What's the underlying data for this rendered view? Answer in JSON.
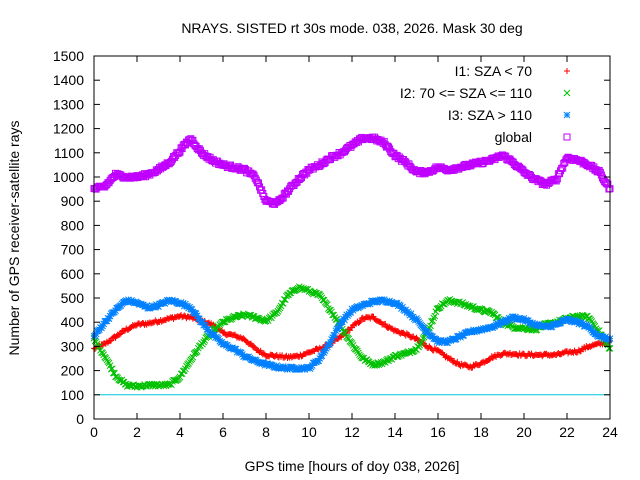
{
  "chart_data": {
    "type": "scatter",
    "title": "NRAYS. SISTED rt 30s mode. 038, 2026. Mask 30 deg",
    "xlabel": "GPS time [hours of doy 038, 2026]",
    "ylabel": "Number of GPS receiver-satellite rays",
    "xlim": [
      0,
      24
    ],
    "ylim": [
      0,
      1500
    ],
    "xticks": [
      0,
      2,
      4,
      6,
      8,
      10,
      12,
      14,
      16,
      18,
      20,
      22,
      24
    ],
    "yticks": [
      0,
      100,
      200,
      300,
      400,
      500,
      600,
      700,
      800,
      900,
      1000,
      1100,
      1200,
      1300,
      1400,
      1500
    ],
    "legend_position": "top-right",
    "threshold_line": {
      "y": 100,
      "color": "#00c8e0"
    },
    "series": [
      {
        "name": "I1: SZA < 70",
        "color": "#ff0000",
        "marker": "plus",
        "x": [
          0,
          0.5,
          1,
          1.5,
          2,
          2.5,
          3,
          3.5,
          4,
          4.5,
          5,
          5.5,
          6,
          6.5,
          7,
          7.5,
          8,
          8.5,
          9,
          9.5,
          10,
          10.5,
          11,
          11.5,
          12,
          12.5,
          13,
          13.5,
          14,
          14.5,
          15,
          15.5,
          16,
          16.5,
          17,
          17.5,
          18,
          18.5,
          19,
          19.5,
          20,
          20.5,
          21,
          21.5,
          22,
          22.5,
          23,
          23.5,
          24
        ],
        "values": [
          290,
          310,
          340,
          370,
          390,
          395,
          405,
          415,
          425,
          420,
          405,
          390,
          355,
          345,
          330,
          290,
          265,
          260,
          255,
          260,
          275,
          290,
          310,
          340,
          380,
          415,
          420,
          390,
          365,
          350,
          330,
          300,
          280,
          250,
          225,
          215,
          230,
          255,
          270,
          270,
          265,
          265,
          265,
          265,
          275,
          280,
          300,
          310,
          320
        ]
      },
      {
        "name": "I2: 70 <= SZA <= 110",
        "color": "#00c000",
        "marker": "cross",
        "x": [
          0,
          0.5,
          1,
          1.5,
          2,
          2.5,
          3,
          3.5,
          4,
          4.5,
          5,
          5.5,
          6,
          6.5,
          7,
          7.5,
          8,
          8.5,
          9,
          9.5,
          10,
          10.5,
          11,
          11.5,
          12,
          12.5,
          13,
          13.5,
          14,
          14.5,
          15,
          15.5,
          16,
          16.5,
          17,
          17.5,
          18,
          18.5,
          19,
          19.5,
          20,
          20.5,
          21,
          21.5,
          22,
          22.5,
          23,
          23.5,
          24
        ],
        "values": [
          330,
          260,
          180,
          140,
          135,
          140,
          140,
          140,
          175,
          245,
          310,
          360,
          400,
          420,
          430,
          420,
          405,
          440,
          510,
          545,
          530,
          510,
          450,
          380,
          310,
          250,
          225,
          235,
          260,
          270,
          290,
          360,
          460,
          490,
          480,
          465,
          450,
          440,
          400,
          380,
          375,
          370,
          390,
          400,
          415,
          425,
          420,
          360,
          290
        ]
      },
      {
        "name": "I3: SZA > 110",
        "color": "#0080ff",
        "marker": "star",
        "x": [
          0,
          0.5,
          1,
          1.5,
          2,
          2.5,
          3,
          3.5,
          4,
          4.5,
          5,
          5.5,
          6,
          6.5,
          7,
          7.5,
          8,
          8.5,
          9,
          9.5,
          10,
          10.5,
          11,
          11.5,
          12,
          12.5,
          13,
          13.5,
          14,
          14.5,
          15,
          15.5,
          16,
          16.5,
          17,
          17.5,
          18,
          18.5,
          19,
          19.5,
          20,
          20.5,
          21,
          21.5,
          22,
          22.5,
          23,
          23.5,
          24
        ],
        "values": [
          340,
          400,
          450,
          490,
          480,
          460,
          470,
          490,
          480,
          460,
          400,
          350,
          310,
          290,
          260,
          240,
          225,
          215,
          210,
          210,
          210,
          250,
          320,
          400,
          450,
          470,
          485,
          490,
          480,
          450,
          410,
          360,
          320,
          320,
          340,
          360,
          370,
          380,
          400,
          420,
          410,
          390,
          380,
          390,
          410,
          400,
          380,
          340,
          330
        ]
      },
      {
        "name": "global",
        "color": "#c000ff",
        "marker": "open-square",
        "x": [
          0,
          0.5,
          1,
          1.5,
          2,
          2.5,
          3,
          3.5,
          4,
          4.5,
          5,
          5.5,
          6,
          6.5,
          7,
          7.5,
          8,
          8.5,
          9,
          9.5,
          10,
          10.5,
          11,
          11.5,
          12,
          12.5,
          13,
          13.5,
          14,
          14.5,
          15,
          15.5,
          16,
          16.5,
          17,
          17.5,
          18,
          18.5,
          19,
          19.5,
          20,
          20.5,
          21,
          21.5,
          22,
          22.5,
          23,
          23.5,
          24
        ],
        "values": [
          950,
          960,
          1010,
          1000,
          1000,
          1010,
          1030,
          1060,
          1110,
          1160,
          1100,
          1070,
          1050,
          1040,
          1030,
          1000,
          900,
          890,
          940,
          990,
          1030,
          1050,
          1080,
          1100,
          1130,
          1160,
          1160,
          1140,
          1090,
          1060,
          1020,
          1020,
          1040,
          1030,
          1040,
          1050,
          1060,
          1070,
          1090,
          1060,
          1020,
          990,
          970,
          990,
          1080,
          1070,
          1050,
          1020,
          950
        ]
      }
    ]
  }
}
